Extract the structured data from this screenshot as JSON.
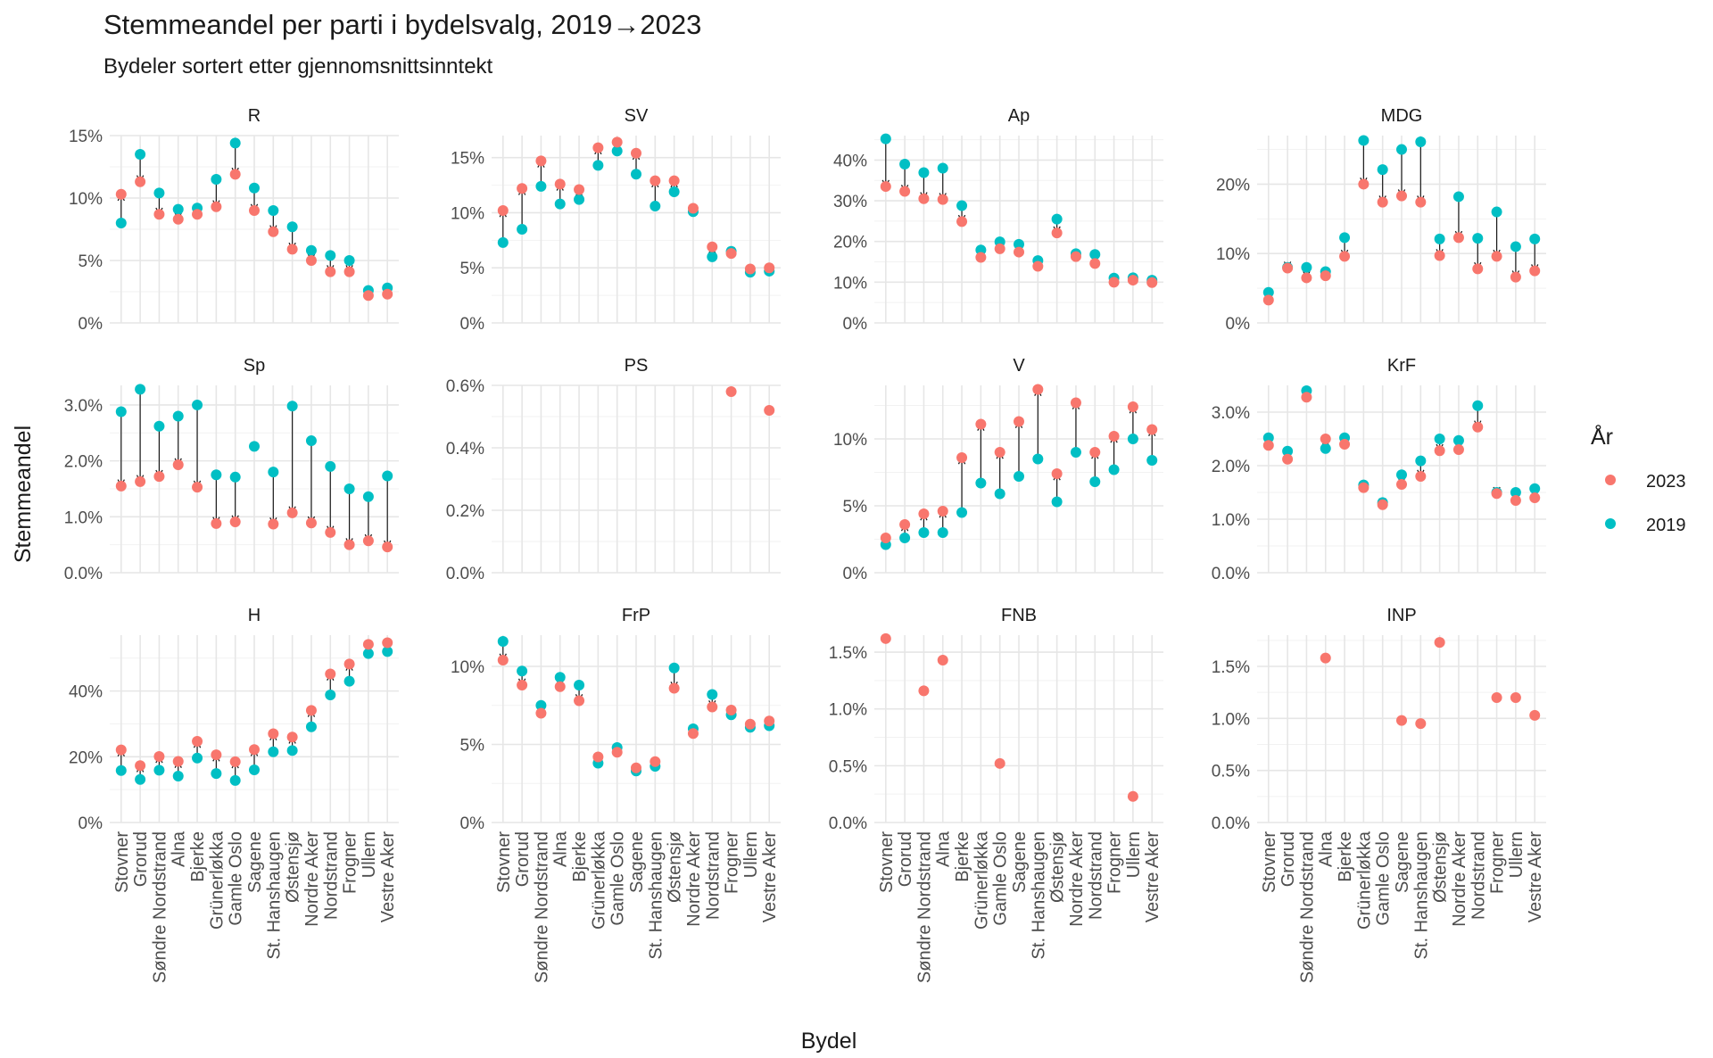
{
  "title": "Stemmeandel per parti i bydelsvalg, 2019→2023",
  "subtitle": "Bydeler sortert etter gjennomsnittsinntekt",
  "xlabel": "Bydel",
  "ylabel": "Stemmeandel",
  "legend": {
    "title": "År",
    "entries": [
      {
        "label": "2023",
        "color": "#F8766D"
      },
      {
        "label": "2019",
        "color": "#00BFC4"
      }
    ]
  },
  "colors": {
    "y2023": "#F8766D",
    "y2019": "#00BFC4",
    "grid_major": "#e6e6e6",
    "grid_minor": "#f2f2f2"
  },
  "districts": [
    "Stovner",
    "Grorud",
    "Søndre Nordstrand",
    "Alna",
    "Bjerke",
    "Grünerløkka",
    "Gamle Oslo",
    "Sagene",
    "St. Hanshaugen",
    "Østensjø",
    "Nordre Aker",
    "Nordstrand",
    "Frogner",
    "Ullern",
    "Vestre Aker"
  ],
  "chart_data": [
    {
      "type": "scatter",
      "panel": "R",
      "ylim": [
        0,
        15
      ],
      "yticks": [
        0,
        5,
        10,
        15
      ],
      "yticklabels": [
        "0%",
        "5%",
        "10%",
        "15%"
      ],
      "y2023": [
        10.3,
        11.3,
        8.7,
        8.3,
        8.7,
        9.3,
        11.9,
        9.0,
        7.3,
        5.9,
        5.0,
        4.1,
        4.1,
        2.2,
        2.3
      ],
      "y2019": [
        8.0,
        13.5,
        10.4,
        9.1,
        9.2,
        11.5,
        14.4,
        10.8,
        9.0,
        7.7,
        5.8,
        5.4,
        5.0,
        2.6,
        2.8
      ]
    },
    {
      "type": "scatter",
      "panel": "SV",
      "ylim": [
        0,
        17
      ],
      "yticks": [
        0,
        5,
        10,
        15
      ],
      "yticklabels": [
        "0%",
        "5%",
        "10%",
        "15%"
      ],
      "y2023": [
        10.2,
        12.2,
        14.7,
        12.6,
        12.1,
        15.9,
        16.4,
        15.4,
        12.9,
        12.9,
        10.4,
        6.9,
        6.3,
        4.9,
        5.0
      ],
      "y2019": [
        7.3,
        8.5,
        12.4,
        10.8,
        11.2,
        14.3,
        15.6,
        13.5,
        10.6,
        11.9,
        10.1,
        6.0,
        6.5,
        4.6,
        4.7
      ]
    },
    {
      "type": "scatter",
      "panel": "Ap",
      "ylim": [
        0,
        46
      ],
      "yticks": [
        0,
        10,
        20,
        30,
        40
      ],
      "yticklabels": [
        "0%",
        "10%",
        "20%",
        "30%",
        "40%"
      ],
      "y2023": [
        33.5,
        32.3,
        30.5,
        30.3,
        24.9,
        16.1,
        18.2,
        17.4,
        13.9,
        22.1,
        16.3,
        14.6,
        10.0,
        10.5,
        9.9
      ],
      "y2019": [
        45.2,
        39.0,
        36.9,
        38.0,
        28.8,
        17.9,
        19.9,
        19.3,
        15.3,
        25.5,
        17.0,
        16.8,
        11.0,
        11.1,
        10.5
      ]
    },
    {
      "type": "scatter",
      "panel": "MDG",
      "ylim": [
        0,
        27
      ],
      "yticks": [
        0,
        10,
        20
      ],
      "yticklabels": [
        "0%",
        "10%",
        "20%"
      ],
      "y2023": [
        3.3,
        7.9,
        6.5,
        6.8,
        9.6,
        20.0,
        17.4,
        18.3,
        17.4,
        9.7,
        12.3,
        7.8,
        9.6,
        6.6,
        7.5
      ],
      "y2019": [
        4.4,
        8.0,
        8.0,
        7.4,
        12.3,
        26.3,
        22.1,
        25.0,
        26.1,
        12.1,
        18.2,
        12.2,
        16.0,
        11.0,
        12.1
      ]
    },
    {
      "type": "scatter",
      "panel": "Sp",
      "ylim": [
        0,
        3.35
      ],
      "yticks": [
        0,
        1,
        2,
        3
      ],
      "yticklabels": [
        "0.0%",
        "1.0%",
        "2.0%",
        "3.0%"
      ],
      "y2023": [
        1.55,
        1.63,
        1.72,
        1.93,
        1.53,
        0.88,
        0.91,
        null,
        0.87,
        1.07,
        0.89,
        0.72,
        0.5,
        0.57,
        0.46
      ],
      "y2019": [
        2.88,
        3.28,
        2.62,
        2.8,
        3.0,
        1.75,
        1.71,
        2.26,
        1.8,
        2.98,
        2.36,
        1.9,
        1.5,
        1.36,
        1.73
      ]
    },
    {
      "type": "scatter",
      "panel": "PS",
      "ylim": [
        0,
        0.6
      ],
      "yticks": [
        0,
        0.2,
        0.4,
        0.6
      ],
      "yticklabels": [
        "0.0%",
        "0.2%",
        "0.4%",
        "0.6%"
      ],
      "y2023": [
        null,
        null,
        null,
        null,
        null,
        null,
        null,
        null,
        null,
        null,
        null,
        null,
        0.58,
        null,
        0.52
      ],
      "y2019": [
        null,
        null,
        null,
        null,
        null,
        null,
        null,
        null,
        null,
        null,
        null,
        null,
        null,
        null,
        null
      ]
    },
    {
      "type": "scatter",
      "panel": "V",
      "ylim": [
        0,
        14
      ],
      "yticks": [
        0,
        5,
        10
      ],
      "yticklabels": [
        "0%",
        "5%",
        "10%"
      ],
      "y2023": [
        2.6,
        3.6,
        4.4,
        4.6,
        8.6,
        11.1,
        9.0,
        11.3,
        13.7,
        7.4,
        12.7,
        9.0,
        10.2,
        12.4,
        10.7
      ],
      "y2019": [
        2.1,
        2.6,
        3.0,
        3.0,
        4.5,
        6.7,
        5.9,
        7.2,
        8.5,
        5.3,
        9.0,
        6.8,
        7.7,
        10.0,
        8.4
      ]
    },
    {
      "type": "scatter",
      "panel": "KrF",
      "ylim": [
        0,
        3.5
      ],
      "yticks": [
        0,
        1,
        2,
        3
      ],
      "yticklabels": [
        "0.0%",
        "1.0%",
        "2.0%",
        "3.0%"
      ],
      "y2023": [
        2.38,
        2.12,
        3.28,
        2.5,
        2.4,
        1.59,
        1.27,
        1.65,
        1.8,
        2.28,
        2.3,
        2.72,
        1.48,
        1.35,
        1.4
      ],
      "y2019": [
        2.52,
        2.27,
        3.4,
        2.32,
        2.52,
        1.64,
        1.31,
        1.83,
        2.09,
        2.5,
        2.47,
        3.12,
        1.5,
        1.5,
        1.57
      ]
    },
    {
      "type": "scatter",
      "panel": "H",
      "ylim": [
        0,
        57
      ],
      "yticks": [
        0,
        20,
        40
      ],
      "yticklabels": [
        "0%",
        "20%",
        "40%"
      ],
      "y2023": [
        22.1,
        17.3,
        20.1,
        18.6,
        24.7,
        20.6,
        18.5,
        22.2,
        27.0,
        26.0,
        34.1,
        45.2,
        48.2,
        54.2,
        54.7
      ],
      "y2019": [
        15.8,
        13.1,
        15.9,
        14.1,
        19.6,
        14.9,
        12.8,
        16.0,
        21.5,
        21.9,
        29.1,
        38.8,
        43.0,
        51.4,
        52.0
      ]
    },
    {
      "type": "scatter",
      "panel": "FrP",
      "ylim": [
        0,
        12
      ],
      "yticks": [
        0,
        5,
        10
      ],
      "yticklabels": [
        "0%",
        "5%",
        "10%"
      ],
      "y2023": [
        10.4,
        8.8,
        7.0,
        8.7,
        7.8,
        4.2,
        4.5,
        3.5,
        3.9,
        8.6,
        5.7,
        7.4,
        7.2,
        6.3,
        6.5
      ],
      "y2019": [
        11.6,
        9.7,
        7.5,
        9.3,
        8.8,
        3.8,
        4.8,
        3.3,
        3.6,
        9.9,
        6.0,
        8.2,
        6.9,
        6.1,
        6.2
      ]
    },
    {
      "type": "scatter",
      "panel": "FNB",
      "ylim": [
        0,
        1.65
      ],
      "yticks": [
        0,
        0.5,
        1,
        1.5
      ],
      "yticklabels": [
        "0.0%",
        "0.5%",
        "1.0%",
        "1.5%"
      ],
      "y2023": [
        1.62,
        null,
        1.16,
        1.43,
        null,
        null,
        0.52,
        null,
        null,
        null,
        null,
        null,
        null,
        0.23,
        null
      ],
      "y2019": [
        null,
        null,
        null,
        null,
        null,
        null,
        null,
        null,
        null,
        null,
        null,
        null,
        null,
        null,
        null
      ]
    },
    {
      "type": "scatter",
      "panel": "INP",
      "ylim": [
        0,
        1.8
      ],
      "yticks": [
        0,
        0.5,
        1,
        1.5
      ],
      "yticklabels": [
        "0.0%",
        "0.5%",
        "1.0%",
        "1.5%"
      ],
      "y2023": [
        null,
        null,
        null,
        1.58,
        null,
        null,
        null,
        0.98,
        0.95,
        1.73,
        null,
        null,
        1.2,
        1.2,
        1.03
      ],
      "y2019": [
        null,
        null,
        null,
        null,
        null,
        null,
        null,
        null,
        null,
        null,
        null,
        null,
        null,
        null,
        null
      ]
    }
  ]
}
